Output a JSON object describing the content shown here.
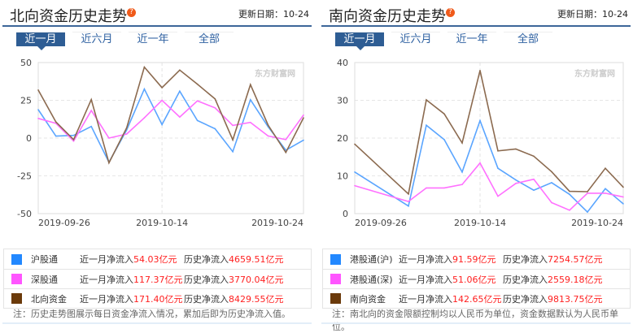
{
  "panels": [
    {
      "title": "北向资金历史走势",
      "update": "更新日期：10-24",
      "tabs": [
        "近一月",
        "近六月",
        "近一年",
        "全部"
      ],
      "active_tab": 0,
      "legend": [
        {
          "name": "沪股通",
          "month_label": "近一月净流入",
          "month": "54.03亿元",
          "hist_label": "历史净流入",
          "hist": "4659.51亿元",
          "color": "#2288ff"
        },
        {
          "name": "深股通",
          "month_label": "近一月净流入",
          "month": "117.37亿元",
          "hist_label": "历史净流入",
          "hist": "3770.04亿元",
          "color": "#ff55ff"
        },
        {
          "name": "北向资金",
          "month_label": "近一月净流入",
          "month": "171.40亿元",
          "hist_label": "历史净流入",
          "hist": "8429.55亿元",
          "color": "#6b3a0a"
        }
      ],
      "note": "注：历史走势图展示每日资金净流入情况，累加后即为历史净流入值。"
    },
    {
      "title": "南向资金历史走势",
      "update": "更新日期：10-24",
      "tabs": [
        "近一月",
        "近六月",
        "近一年",
        "全部"
      ],
      "active_tab": 0,
      "legend": [
        {
          "name": "港股通(沪)",
          "month_label": "近一月净流入",
          "month": "91.59亿元",
          "hist_label": "历史净流入",
          "hist": "7254.57亿元",
          "color": "#2288ff"
        },
        {
          "name": "港股通(深)",
          "month_label": "近一月净流入",
          "month": "51.06亿元",
          "hist_label": "历史净流入",
          "hist": "2559.18亿元",
          "color": "#ff55ff"
        },
        {
          "name": "南向资金",
          "month_label": "近一月净流入",
          "month": "142.65亿元",
          "hist_label": "历史净流入",
          "hist": "9813.75亿元",
          "color": "#6b3a0a"
        }
      ],
      "note": "注：南北向的资金限额控制均以人民币为单位，资金数据默认为人民币单位。"
    }
  ],
  "watermark": "东方财富网 eastmoney.com",
  "chart_data": [
    {
      "type": "line",
      "ylim": [
        -50,
        50
      ],
      "yticks": [
        50,
        25,
        0,
        -25,
        -50
      ],
      "grid": true,
      "xtick_labels": [
        {
          "index": 0,
          "label": "2019-09-26"
        },
        {
          "index": 7,
          "label": "2019-10-14"
        },
        {
          "index": 15,
          "label": "2019-10-24"
        }
      ],
      "n_points": 16,
      "series": [
        {
          "name": "沪股通",
          "color": "#5aa5ff",
          "values": [
            18.8,
            1.3,
            1.8,
            7.7,
            -16,
            5.4,
            32.5,
            8.9,
            31,
            11.6,
            6.2,
            -9,
            25.4,
            7.5,
            -8,
            -1.4
          ]
        },
        {
          "name": "深股通",
          "color": "#ff70ff",
          "values": [
            13,
            9.8,
            -2,
            18.2,
            0,
            2.7,
            13.4,
            25,
            13.9,
            24.6,
            20,
            8.4,
            10.4,
            1.4,
            -1,
            15.2
          ]
        },
        {
          "name": "北向资金",
          "color": "#8b6a4f",
          "values": [
            31.8,
            10.7,
            -1,
            25.5,
            -16.4,
            6.8,
            47,
            33.4,
            45,
            35.7,
            25.9,
            -1.2,
            35.4,
            8.6,
            -9.5,
            13.4
          ]
        }
      ]
    },
    {
      "type": "line",
      "ylim": [
        0,
        40
      ],
      "yticks": [
        40,
        30,
        20,
        10,
        0
      ],
      "grid": true,
      "xtick_labels": [
        {
          "index": 0,
          "label": "2019-09-26"
        },
        {
          "index": 7,
          "label": "2019-10-14"
        },
        {
          "index": 15,
          "label": "2019-10-24"
        }
      ],
      "n_points": 16,
      "series": [
        {
          "name": "港股通(沪)",
          "color": "#5aa5ff",
          "values": [
            11,
            null,
            null,
            2,
            23.4,
            19.6,
            11,
            24.6,
            12,
            8.9,
            6.2,
            8.2,
            5.1,
            0.4,
            6.6,
            2.6
          ]
        },
        {
          "name": "港股通(深)",
          "color": "#ff70ff",
          "values": [
            7.4,
            null,
            null,
            3.2,
            6.8,
            6.8,
            7.7,
            13.4,
            4.6,
            8,
            9.1,
            2.9,
            0.9,
            5.4,
            5.4,
            4.4
          ]
        },
        {
          "name": "南向资金",
          "color": "#8b6a4f",
          "values": [
            18.4,
            null,
            null,
            5.2,
            30.1,
            26.4,
            18.7,
            37.9,
            16.6,
            17.1,
            15.2,
            11.1,
            5.9,
            5.8,
            12,
            7
          ]
        }
      ]
    }
  ]
}
